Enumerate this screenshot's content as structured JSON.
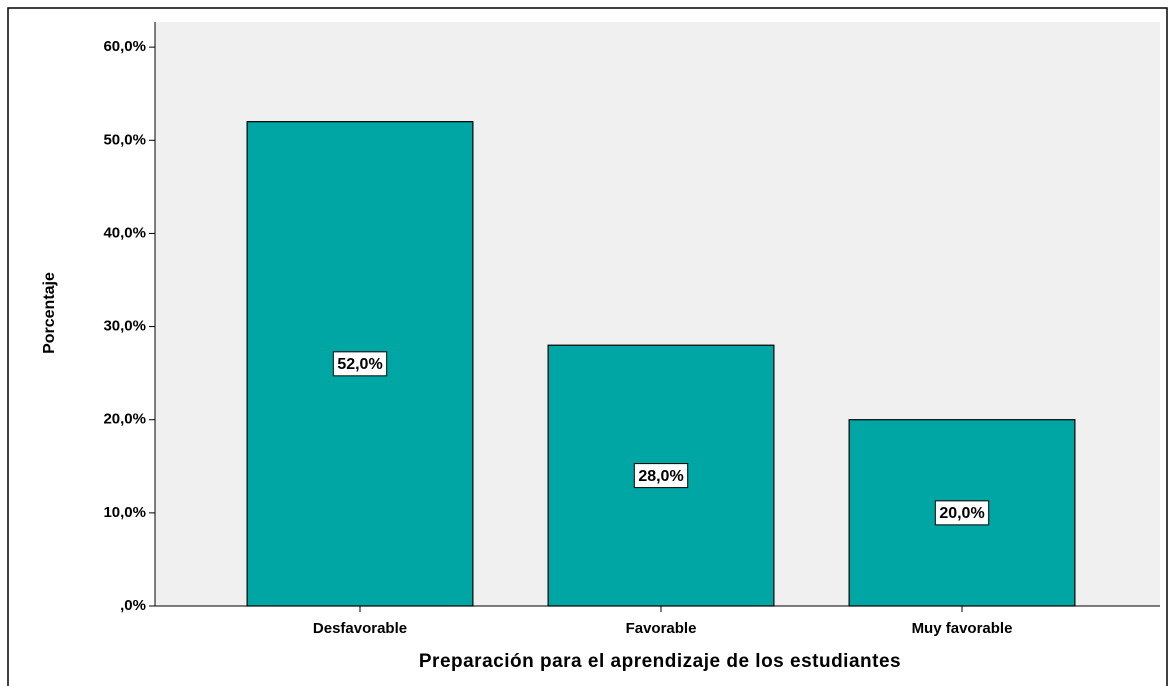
{
  "chart_data": {
    "type": "bar",
    "x_label": "Preparación para el aprendizaje de los estudiantes",
    "y_label": "Porcentaje",
    "categories": [
      "Desfavorable",
      "Favorable",
      "Muy favorable"
    ],
    "values": [
      52,
      28,
      20
    ],
    "value_labels": [
      "52,0%",
      "28,0%",
      "20,0%"
    ],
    "color": "#00a6a3",
    "ylim": [
      0,
      62.7
    ],
    "yticks": [
      {
        "value": 0,
        "label": ",0%"
      },
      {
        "value": 10,
        "label": "10,0%"
      },
      {
        "value": 20,
        "label": "20,0%"
      },
      {
        "value": 30,
        "label": "30,0%"
      },
      {
        "value": 40,
        "label": "40,0%"
      },
      {
        "value": 50,
        "label": "50,0%"
      },
      {
        "value": 60,
        "label": "60,0%"
      }
    ],
    "grid": false
  }
}
